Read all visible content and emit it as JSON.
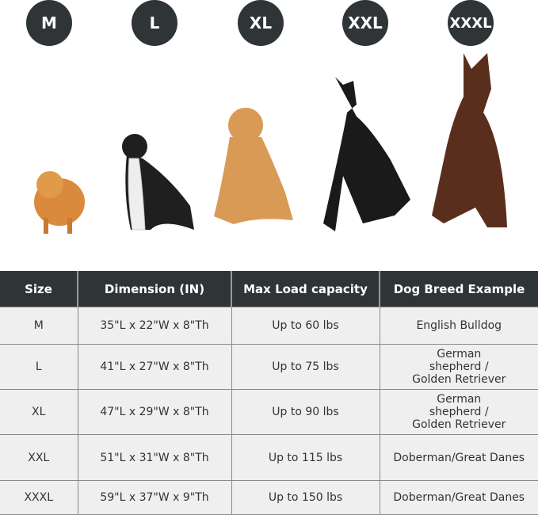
{
  "sizes": [
    "M",
    "L",
    "XL",
    "XXL",
    "XXXL"
  ],
  "dogs": [
    {
      "name": "pomeranian",
      "color": "#d98a3d"
    },
    {
      "name": "border-collie",
      "color": "#1f1f1f"
    },
    {
      "name": "golden-retriever",
      "color": "#d99a55"
    },
    {
      "name": "great-dane",
      "color": "#1a1a1a"
    },
    {
      "name": "doberman",
      "color": "#5a2e1c"
    }
  ],
  "table": {
    "headers": [
      "Size",
      "Dimension (IN)",
      "Max Load capacity",
      "Dog Breed Example"
    ],
    "rows": [
      [
        "M",
        "35\"L x 22\"W x 8\"Th",
        "Up to 60 lbs",
        "English Bulldog"
      ],
      [
        "L",
        "41\"L x 27\"W x 8\"Th",
        "Up to 75 lbs",
        "German shepherd / Golden Retriever"
      ],
      [
        "XL",
        "47\"L x 29\"W x 8\"Th",
        "Up to 90 lbs",
        "German shepherd / Golden Retriever"
      ],
      [
        "XXL",
        "51\"L x 31\"W x 8\"Th",
        "Up to 115 lbs",
        "Doberman/Great Danes"
      ],
      [
        "XXXL",
        "59\"L x 37\"W x 9\"Th",
        "Up to 150 lbs",
        "Doberman/Great Danes"
      ]
    ]
  },
  "colors": {
    "header": "#2f3537",
    "row": "#efefef"
  }
}
